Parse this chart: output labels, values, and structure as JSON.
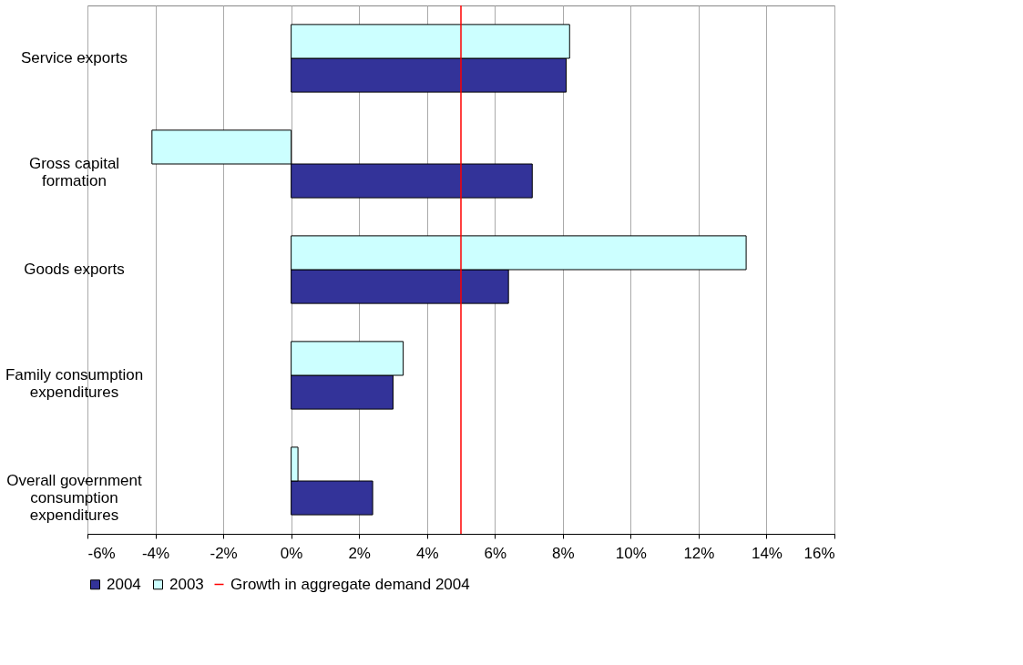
{
  "chart_data": {
    "type": "bar",
    "orientation": "horizontal",
    "categories": [
      "Service exports",
      "Gross capital formation",
      "Goods exports",
      "Family consumption expenditures",
      "Overall government consumption expenditures"
    ],
    "series": [
      {
        "name": "2004",
        "color": "#333399",
        "values": [
          8.1,
          7.1,
          6.4,
          3.0,
          2.4
        ]
      },
      {
        "name": "2003",
        "color": "#ccffff",
        "values": [
          8.2,
          -4.1,
          13.4,
          3.3,
          0.2
        ]
      }
    ],
    "xlim": [
      -6,
      16
    ],
    "xticks": [
      {
        "value": -6,
        "label": "-6%"
      },
      {
        "value": -4,
        "label": "-4%"
      },
      {
        "value": -2,
        "label": "-2%"
      },
      {
        "value": 0,
        "label": "0%"
      },
      {
        "value": 2,
        "label": "2%"
      },
      {
        "value": 4,
        "label": "4%"
      },
      {
        "value": 6,
        "label": "6%"
      },
      {
        "value": 8,
        "label": "8%"
      },
      {
        "value": 10,
        "label": "10%"
      },
      {
        "value": 12,
        "label": "12%"
      },
      {
        "value": 14,
        "label": "14%"
      },
      {
        "value": 16,
        "label": "16%"
      }
    ],
    "ref_lines": [
      {
        "axis": "x",
        "value": 5,
        "label": "Growth in aggregate demand 2004",
        "color": "#ff0000"
      }
    ],
    "grid": "x",
    "legend": "bottom"
  }
}
